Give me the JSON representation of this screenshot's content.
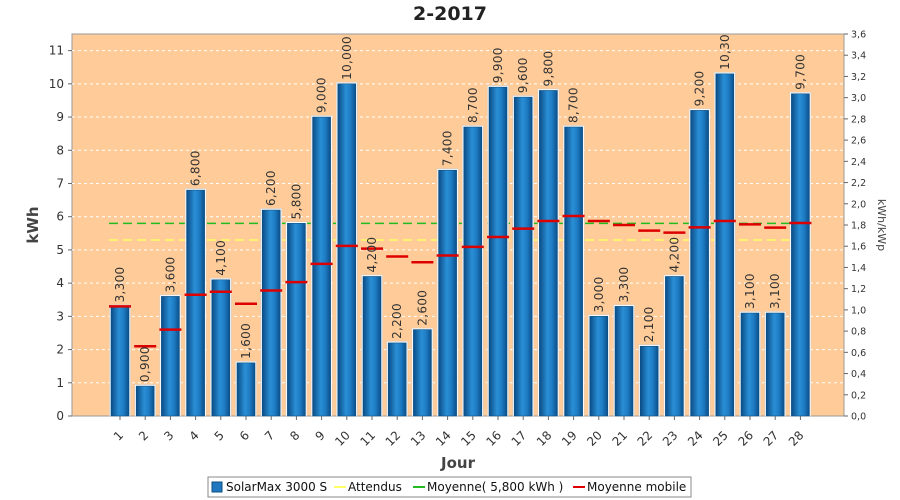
{
  "chart_data": {
    "type": "bar",
    "title": "2-2017",
    "xlabel": "Jour",
    "ylabel": "kWh",
    "y2label": "kWh/kWp",
    "ylim": [
      0,
      11.5
    ],
    "y2lim": [
      0,
      3.6
    ],
    "yticks": [
      "0",
      "1",
      "2",
      "3",
      "4",
      "5",
      "6",
      "7",
      "8",
      "9",
      "10",
      "11"
    ],
    "y2ticks": [
      "0,0",
      "0,2",
      "0,4",
      "0,6",
      "0,8",
      "1,0",
      "1,2",
      "1,4",
      "1,6",
      "1,8",
      "2,0",
      "2,2",
      "2,4",
      "2,6",
      "2,8",
      "3,0",
      "3,2",
      "3,4",
      "3,6"
    ],
    "categories": [
      "1",
      "2",
      "3",
      "4",
      "5",
      "6",
      "7",
      "8",
      "9",
      "10",
      "11",
      "12",
      "13",
      "14",
      "15",
      "16",
      "17",
      "18",
      "19",
      "20",
      "21",
      "22",
      "23",
      "24",
      "25",
      "26",
      "27",
      "28"
    ],
    "series": [
      {
        "name": "SolarMax 3000 S",
        "values": [
          3.3,
          0.9,
          3.6,
          6.8,
          4.1,
          1.6,
          6.2,
          5.8,
          9.0,
          10.0,
          4.2,
          2.2,
          2.6,
          7.4,
          8.7,
          9.9,
          9.6,
          9.8,
          8.7,
          3.0,
          3.3,
          2.1,
          4.2,
          9.2,
          10.3,
          3.1,
          3.1,
          9.7
        ],
        "labels": [
          "3,300",
          "0,900",
          "3,600",
          "6,800",
          "4,100",
          "1,600",
          "6,200",
          "5,800",
          "9,000",
          "10,000",
          "4,200",
          "2,200",
          "2,600",
          "7,400",
          "8,700",
          "9,900",
          "9,600",
          "9,800",
          "8,700",
          "3,000",
          "3,300",
          "2,100",
          "4,200",
          "9,200",
          "10,30",
          "3,100",
          "3,100",
          "9,700"
        ],
        "color": "#1f77c0"
      },
      {
        "name": "Attendus",
        "values": [
          5.3,
          5.3,
          5.3,
          5.3,
          5.3,
          5.3,
          5.3,
          5.3,
          5.3,
          5.3,
          5.3,
          5.3,
          5.3,
          5.3,
          5.3,
          5.3,
          5.3,
          5.3,
          5.3,
          5.3,
          5.3,
          5.3,
          5.3,
          5.3,
          5.3,
          5.3,
          5.3,
          5.3
        ],
        "color": "#ffff66"
      },
      {
        "name": "Moyenne( 5,800 kWh )",
        "values": [
          5.8,
          5.8,
          5.8,
          5.8,
          5.8,
          5.8,
          5.8,
          5.8,
          5.8,
          5.8,
          5.8,
          5.8,
          5.8,
          5.8,
          5.8,
          5.8,
          5.8,
          5.8,
          5.8,
          5.8,
          5.8,
          5.8,
          5.8,
          5.8,
          5.8,
          5.8,
          5.8,
          5.8
        ],
        "color": "#22bb22"
      },
      {
        "name": "Moyenne mobile",
        "values": [
          3.3,
          2.1,
          2.6,
          3.65,
          3.74,
          3.38,
          3.78,
          4.03,
          4.58,
          5.12,
          5.04,
          4.8,
          4.63,
          4.83,
          5.09,
          5.39,
          5.64,
          5.87,
          6.02,
          5.87,
          5.75,
          5.58,
          5.52,
          5.68,
          5.87,
          5.77,
          5.67,
          5.81
        ],
        "color": "#dd0000"
      }
    ],
    "legend_position": "bottom",
    "grid": true,
    "colors": {
      "plot_background": "#ffcc99",
      "grid": "#ffffff",
      "bar_edge": "#0d4f80"
    }
  }
}
